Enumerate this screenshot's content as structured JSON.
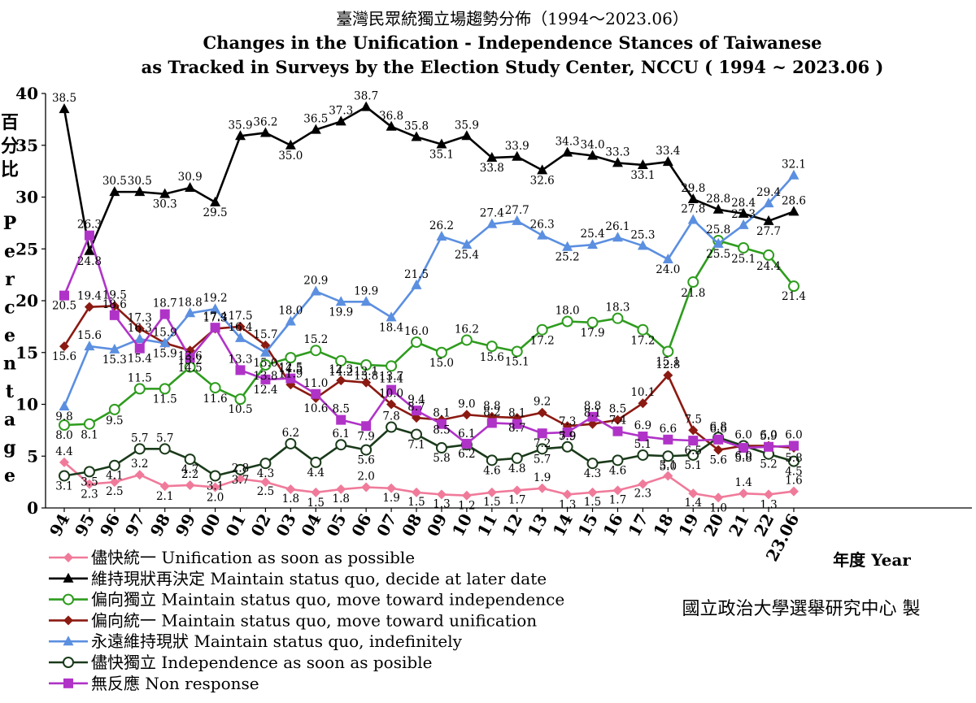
{
  "chart_data": {
    "type": "line",
    "title": "臺灣民眾統獨立場趨勢分佈（1994～2023.06）",
    "subtitle_line1": "Changes in the Unification - Independence Stances of Taiwanese",
    "subtitle_line2": "as Tracked in Surveys by the Election Study Center, NCCU ( 1994 ~ 2023.06 )",
    "ylabel_zh": "百分比",
    "ylabel_en": "Percentage",
    "xlabel": "年度 Year",
    "credit": "國立政治大學選舉研究中心 製",
    "ylim": [
      0,
      40
    ],
    "yticks": [
      "0",
      "5",
      "10",
      "15",
      "20",
      "25",
      "30",
      "35",
      "40"
    ],
    "grid": false,
    "legend_position": "bottom-left",
    "categories": [
      "94",
      "95",
      "96",
      "97",
      "98",
      "99",
      "00",
      "01",
      "02",
      "03",
      "04",
      "05",
      "06",
      "07",
      "08",
      "09",
      "10",
      "11",
      "12",
      "13",
      "14",
      "15",
      "16",
      "17",
      "18",
      "19",
      "20",
      "21",
      "22",
      "23.06"
    ],
    "series": [
      {
        "name": "儘快統一 Unification as soon as possible",
        "color": "#f07a9a",
        "marker": "diamond",
        "values": [
          4.4,
          2.3,
          2.5,
          3.2,
          2.1,
          2.2,
          2.0,
          2.8,
          2.5,
          1.8,
          1.5,
          1.8,
          2.0,
          1.9,
          1.5,
          1.3,
          1.2,
          1.5,
          1.7,
          1.9,
          1.3,
          1.5,
          1.7,
          2.3,
          3.1,
          1.4,
          1.0,
          1.4,
          1.3,
          1.6
        ]
      },
      {
        "name": "維持現狀再決定 Maintain status quo, decide at later date",
        "color": "#000000",
        "marker": "triangle",
        "values": [
          38.5,
          24.8,
          30.5,
          30.5,
          30.3,
          30.9,
          29.5,
          35.9,
          36.2,
          35.0,
          36.5,
          37.3,
          38.7,
          36.8,
          35.8,
          35.1,
          35.9,
          33.8,
          33.9,
          32.6,
          34.3,
          34.0,
          33.3,
          33.1,
          33.4,
          29.8,
          28.8,
          28.4,
          27.7,
          28.6
        ]
      },
      {
        "name": "偏向獨立 Maintain status quo, move toward independence",
        "color": "#2e9c1e",
        "marker": "open-circle",
        "values": [
          8.0,
          8.1,
          9.5,
          11.5,
          11.5,
          13.6,
          11.6,
          10.5,
          13.8,
          14.5,
          15.2,
          14.2,
          13.8,
          13.7,
          16.0,
          15.0,
          16.2,
          15.6,
          15.1,
          17.2,
          18.0,
          17.9,
          18.3,
          17.2,
          15.1,
          21.8,
          25.8,
          25.1,
          24.4,
          21.4
        ]
      },
      {
        "name": "偏向統一 Maintain status quo, move toward unification",
        "color": "#8b1a12",
        "marker": "diamond",
        "values": [
          15.6,
          19.4,
          19.5,
          17.3,
          15.9,
          15.2,
          17.3,
          17.5,
          15.7,
          11.9,
          10.6,
          12.3,
          12.1,
          10.0,
          8.7,
          8.5,
          9.0,
          8.8,
          8.7,
          9.2,
          7.9,
          8.1,
          8.5,
          10.1,
          12.8,
          7.5,
          5.6,
          6.0,
          6.0,
          5.8
        ]
      },
      {
        "name": "永遠維持現狀 Maintain status quo, indefinitely",
        "color": "#5b8fe0",
        "marker": "triangle",
        "values": [
          9.8,
          15.6,
          15.3,
          16.3,
          15.9,
          18.8,
          19.2,
          16.4,
          15.0,
          18.0,
          20.9,
          19.9,
          19.9,
          18.4,
          21.5,
          26.2,
          25.4,
          27.4,
          27.7,
          26.3,
          25.2,
          25.4,
          26.1,
          25.3,
          24.0,
          27.8,
          25.5,
          27.3,
          29.4,
          32.1
        ]
      },
      {
        "name": "儘快獨立 Independence as soon as posible",
        "color": "#1a3a1a",
        "marker": "open-circle",
        "values": [
          3.1,
          3.5,
          4.1,
          5.7,
          5.7,
          4.7,
          3.1,
          3.7,
          4.3,
          6.2,
          4.4,
          6.1,
          5.6,
          7.8,
          7.1,
          5.8,
          6.1,
          4.6,
          4.8,
          5.7,
          5.9,
          4.3,
          4.6,
          5.1,
          5.0,
          5.1,
          6.8,
          6.0,
          5.2,
          4.5
        ]
      },
      {
        "name": "無反應 Non response",
        "color": "#b033c8",
        "marker": "square",
        "values": [
          20.5,
          26.3,
          18.6,
          15.4,
          18.7,
          14.5,
          17.4,
          13.3,
          12.4,
          12.5,
          11.0,
          8.5,
          7.9,
          11.4,
          9.4,
          8.1,
          6.2,
          8.2,
          8.1,
          7.2,
          7.3,
          8.8,
          7.4,
          6.9,
          6.6,
          6.5,
          6.6,
          5.8,
          5.9,
          6.0
        ]
      }
    ]
  }
}
